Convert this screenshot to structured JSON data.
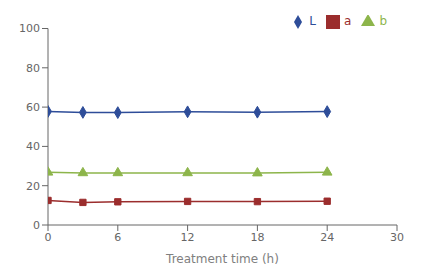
{
  "chart_data": {
    "type": "line",
    "x": [
      0,
      3,
      6,
      12,
      18,
      24
    ],
    "series": [
      {
        "name": "L",
        "color": "#2E4D99",
        "values": [
          57.8,
          57.3,
          57.2,
          57.6,
          57.4,
          57.7
        ],
        "marker": "diamond"
      },
      {
        "name": "a",
        "color": "#9B2D2D",
        "values": [
          12.5,
          11.5,
          11.8,
          12.0,
          11.9,
          12.1
        ],
        "marker": "square"
      },
      {
        "name": "b",
        "color": "#8DB54B",
        "values": [
          26.8,
          26.5,
          26.5,
          26.5,
          26.4,
          26.8
        ],
        "marker": "triangle"
      }
    ],
    "xlabel": "Treatment time (h)",
    "xlim": [
      0,
      30
    ],
    "ylim": [
      0,
      100
    ],
    "xticks": [
      0,
      6,
      12,
      18,
      24,
      30
    ],
    "yticks": [
      0,
      20,
      40,
      60,
      80,
      100
    ],
    "legend": "upper right",
    "grid": false
  }
}
